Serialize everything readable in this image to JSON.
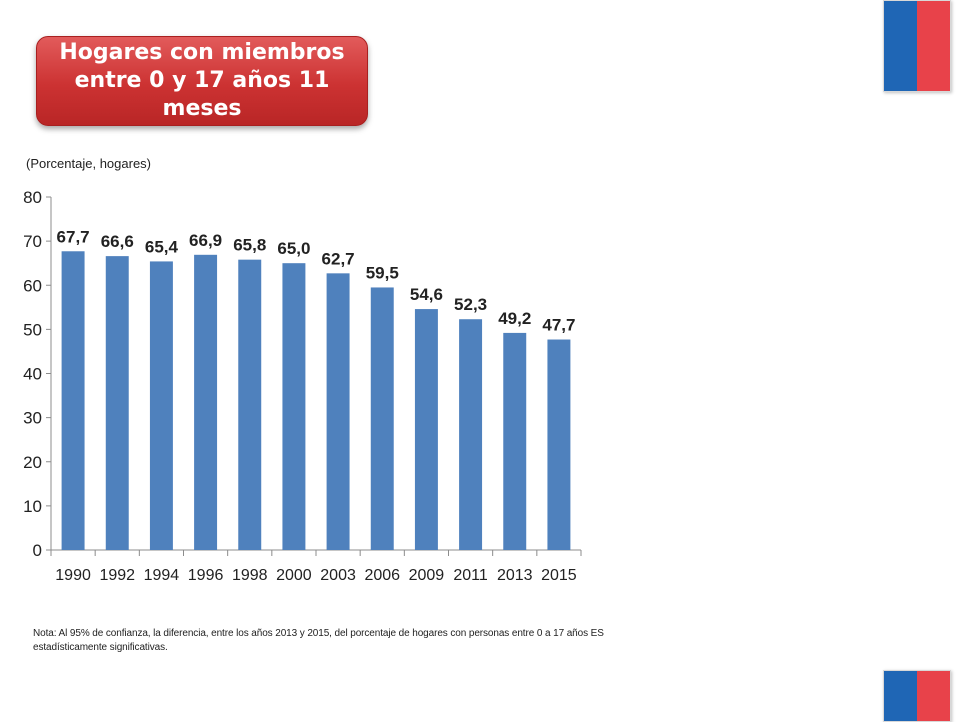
{
  "header": {
    "title": "Hogares con miembros entre 0 y 17 años 11 meses"
  },
  "colors": {
    "bar": "#4f81bd",
    "title_bg": "#cc3232",
    "flag_blue": "#1f66b5",
    "flag_red": "#e8424a"
  },
  "chart_data": {
    "type": "bar",
    "title": "",
    "subtitle": "(Porcentaje, hogares)",
    "xlabel": "",
    "ylabel": "",
    "ylim": [
      0,
      80
    ],
    "yticks": [
      0,
      10,
      20,
      30,
      40,
      50,
      60,
      70,
      80
    ],
    "grid": false,
    "categories": [
      "1990",
      "1992",
      "1994",
      "1996",
      "1998",
      "2000",
      "2003",
      "2006",
      "2009",
      "2011",
      "2013",
      "2015"
    ],
    "values": [
      67.7,
      66.6,
      65.4,
      66.9,
      65.8,
      65.0,
      62.7,
      59.5,
      54.6,
      52.3,
      49.2,
      47.7
    ],
    "value_labels": [
      "67,7",
      "66,6",
      "65,4",
      "66,9",
      "65,8",
      "65,0",
      "62,7",
      "59,5",
      "54,6",
      "52,3",
      "49,2",
      "47,7"
    ]
  },
  "note": "Nota: Al 95% de confianza, la diferencia, entre los años 2013 y 2015, del porcentaje de hogares con personas entre 0 a 17 años ES estadísticamente significativas."
}
